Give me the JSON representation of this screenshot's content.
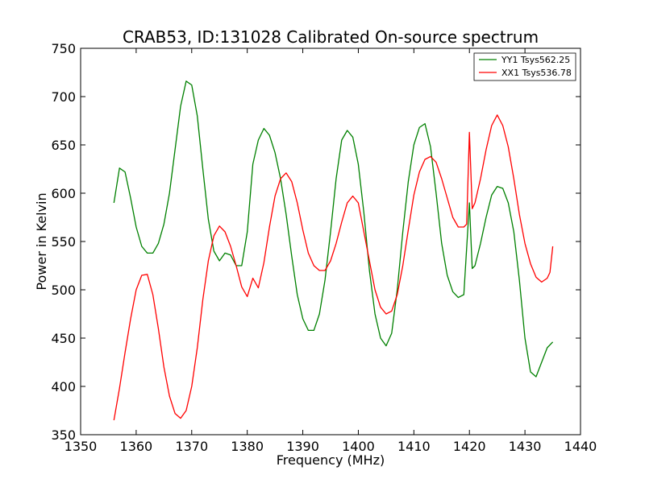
{
  "chart_data": {
    "type": "line",
    "title": "CRAB53, ID:131028 Calibrated On-source spectrum",
    "xlabel": "Frequency (MHz)",
    "ylabel": "Power in Kelvin",
    "xlim": [
      1350,
      1440
    ],
    "ylim": [
      350,
      750
    ],
    "xticks": [
      1350,
      1360,
      1370,
      1380,
      1390,
      1400,
      1410,
      1420,
      1430,
      1440
    ],
    "yticks": [
      350,
      400,
      450,
      500,
      550,
      600,
      650,
      700,
      750
    ],
    "grid": false,
    "legend_position": "upper-right",
    "series": [
      {
        "name": "YY1 Tsys562.25",
        "color": "#008000",
        "points": [
          [
            1356,
            590
          ],
          [
            1357,
            626
          ],
          [
            1358,
            622
          ],
          [
            1359,
            595
          ],
          [
            1360,
            565
          ],
          [
            1361,
            545
          ],
          [
            1362,
            538
          ],
          [
            1363,
            538
          ],
          [
            1364,
            548
          ],
          [
            1365,
            568
          ],
          [
            1366,
            600
          ],
          [
            1367,
            645
          ],
          [
            1368,
            690
          ],
          [
            1369,
            716
          ],
          [
            1370,
            712
          ],
          [
            1371,
            680
          ],
          [
            1372,
            625
          ],
          [
            1373,
            573
          ],
          [
            1374,
            540
          ],
          [
            1375,
            530
          ],
          [
            1376,
            538
          ],
          [
            1377,
            536
          ],
          [
            1378,
            525
          ],
          [
            1379,
            525
          ],
          [
            1380,
            560
          ],
          [
            1381,
            630
          ],
          [
            1382,
            655
          ],
          [
            1383,
            667
          ],
          [
            1384,
            660
          ],
          [
            1385,
            642
          ],
          [
            1386,
            615
          ],
          [
            1387,
            578
          ],
          [
            1388,
            535
          ],
          [
            1389,
            495
          ],
          [
            1390,
            470
          ],
          [
            1391,
            458
          ],
          [
            1392,
            458
          ],
          [
            1393,
            475
          ],
          [
            1394,
            510
          ],
          [
            1395,
            560
          ],
          [
            1396,
            615
          ],
          [
            1397,
            655
          ],
          [
            1398,
            665
          ],
          [
            1399,
            658
          ],
          [
            1400,
            630
          ],
          [
            1401,
            580
          ],
          [
            1402,
            520
          ],
          [
            1403,
            475
          ],
          [
            1404,
            450
          ],
          [
            1405,
            442
          ],
          [
            1406,
            455
          ],
          [
            1407,
            500
          ],
          [
            1408,
            560
          ],
          [
            1409,
            612
          ],
          [
            1410,
            650
          ],
          [
            1411,
            668
          ],
          [
            1412,
            672
          ],
          [
            1413,
            648
          ],
          [
            1414,
            600
          ],
          [
            1415,
            548
          ],
          [
            1416,
            515
          ],
          [
            1417,
            498
          ],
          [
            1418,
            492
          ],
          [
            1419,
            495
          ],
          [
            1420,
            590
          ],
          [
            1420.5,
            522
          ],
          [
            1421,
            525
          ],
          [
            1422,
            548
          ],
          [
            1423,
            575
          ],
          [
            1424,
            598
          ],
          [
            1425,
            607
          ],
          [
            1426,
            605
          ],
          [
            1427,
            590
          ],
          [
            1428,
            560
          ],
          [
            1429,
            510
          ],
          [
            1430,
            450
          ],
          [
            1431,
            415
          ],
          [
            1432,
            410
          ],
          [
            1433,
            425
          ],
          [
            1434,
            440
          ],
          [
            1435,
            446
          ]
        ]
      },
      {
        "name": "XX1 Tsys536.78",
        "color": "#ff0000",
        "points": [
          [
            1356,
            365
          ],
          [
            1357,
            398
          ],
          [
            1358,
            435
          ],
          [
            1359,
            470
          ],
          [
            1360,
            500
          ],
          [
            1361,
            515
          ],
          [
            1362,
            516
          ],
          [
            1363,
            495
          ],
          [
            1364,
            460
          ],
          [
            1365,
            420
          ],
          [
            1366,
            390
          ],
          [
            1367,
            372
          ],
          [
            1368,
            367
          ],
          [
            1369,
            375
          ],
          [
            1370,
            400
          ],
          [
            1371,
            440
          ],
          [
            1372,
            490
          ],
          [
            1373,
            530
          ],
          [
            1374,
            556
          ],
          [
            1375,
            566
          ],
          [
            1376,
            560
          ],
          [
            1377,
            545
          ],
          [
            1378,
            525
          ],
          [
            1379,
            503
          ],
          [
            1380,
            493
          ],
          [
            1381,
            512
          ],
          [
            1382,
            502
          ],
          [
            1383,
            528
          ],
          [
            1384,
            565
          ],
          [
            1385,
            597
          ],
          [
            1386,
            615
          ],
          [
            1387,
            621
          ],
          [
            1388,
            612
          ],
          [
            1389,
            590
          ],
          [
            1390,
            562
          ],
          [
            1391,
            538
          ],
          [
            1392,
            525
          ],
          [
            1393,
            520
          ],
          [
            1394,
            520
          ],
          [
            1395,
            530
          ],
          [
            1396,
            548
          ],
          [
            1397,
            570
          ],
          [
            1398,
            590
          ],
          [
            1399,
            597
          ],
          [
            1400,
            590
          ],
          [
            1401,
            560
          ],
          [
            1402,
            530
          ],
          [
            1403,
            500
          ],
          [
            1404,
            482
          ],
          [
            1405,
            475
          ],
          [
            1406,
            478
          ],
          [
            1407,
            495
          ],
          [
            1408,
            525
          ],
          [
            1409,
            562
          ],
          [
            1410,
            598
          ],
          [
            1411,
            622
          ],
          [
            1412,
            635
          ],
          [
            1413,
            638
          ],
          [
            1414,
            632
          ],
          [
            1415,
            615
          ],
          [
            1416,
            595
          ],
          [
            1417,
            575
          ],
          [
            1418,
            565
          ],
          [
            1419,
            565
          ],
          [
            1419.5,
            568
          ],
          [
            1420,
            663
          ],
          [
            1420.5,
            584
          ],
          [
            1421,
            590
          ],
          [
            1422,
            615
          ],
          [
            1423,
            645
          ],
          [
            1424,
            670
          ],
          [
            1425,
            681
          ],
          [
            1426,
            670
          ],
          [
            1427,
            648
          ],
          [
            1428,
            615
          ],
          [
            1429,
            578
          ],
          [
            1430,
            548
          ],
          [
            1431,
            527
          ],
          [
            1432,
            513
          ],
          [
            1433,
            508
          ],
          [
            1434,
            512
          ],
          [
            1434.5,
            518
          ],
          [
            1435,
            545
          ]
        ]
      }
    ]
  }
}
